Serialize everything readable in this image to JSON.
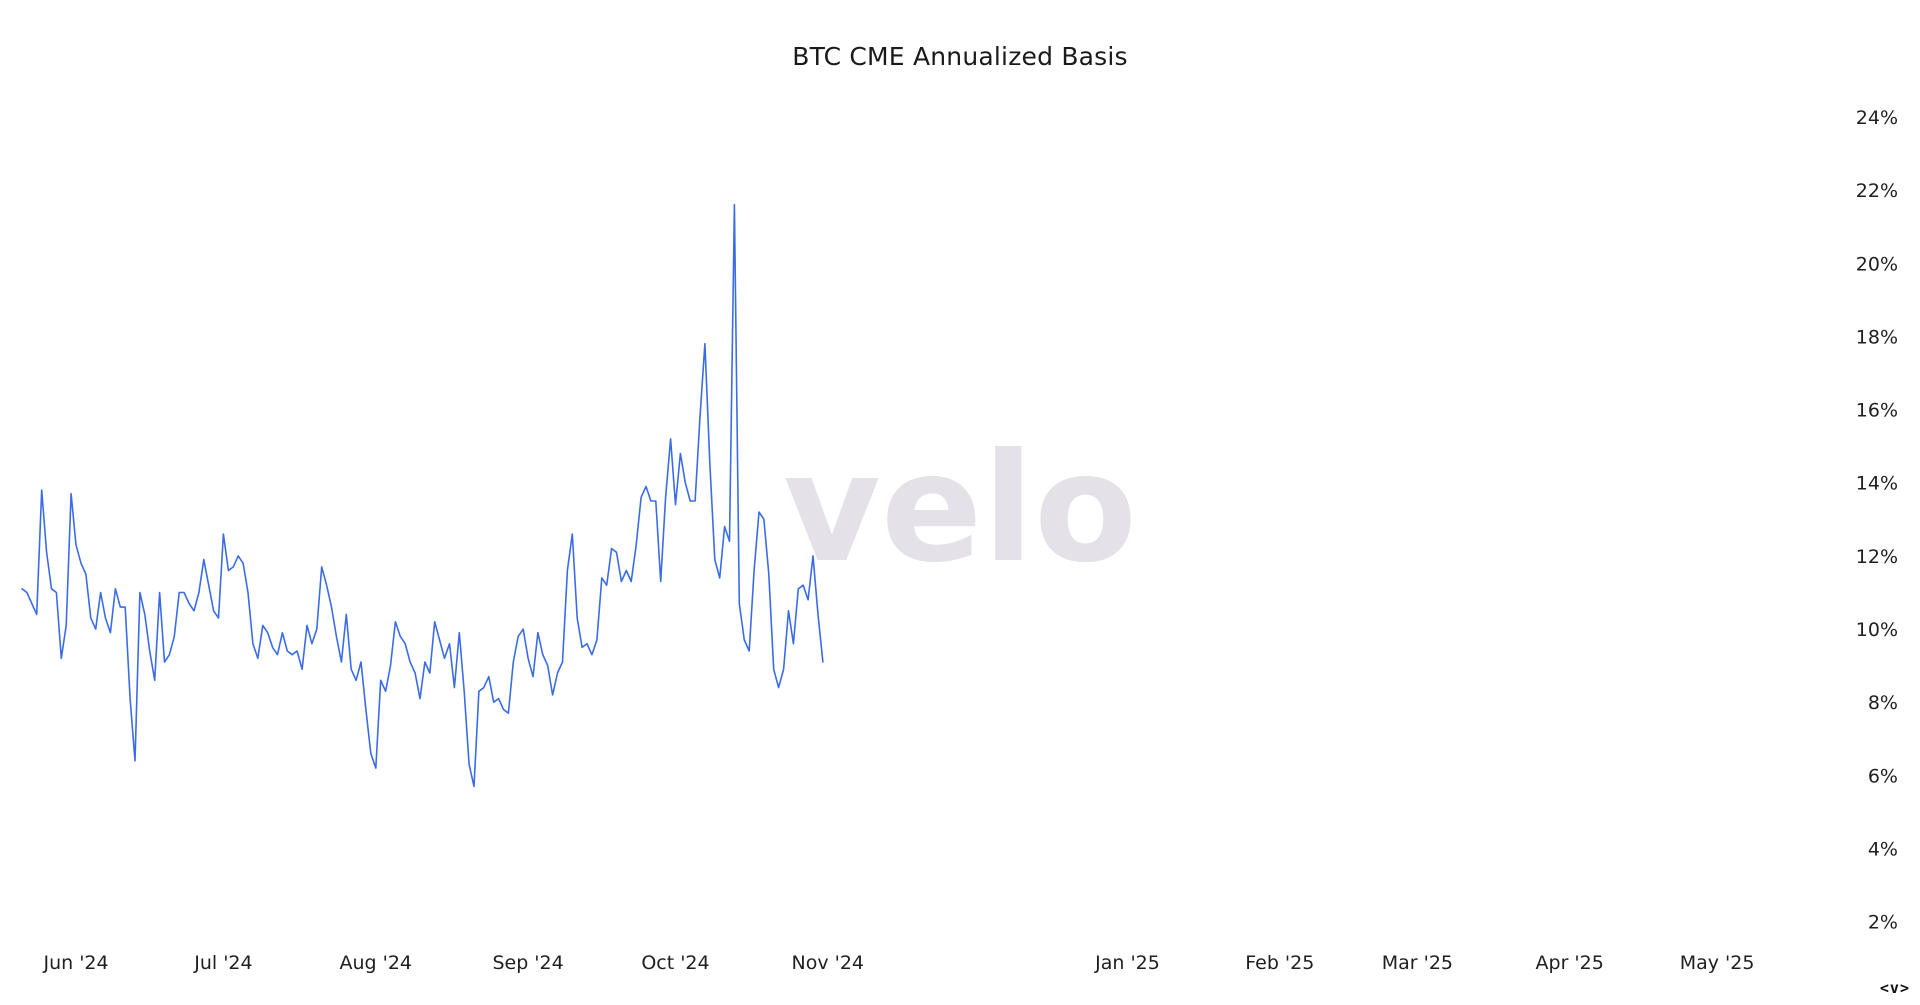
{
  "chart_data": {
    "type": "line",
    "title": "BTC CME Annualized Basis",
    "watermark": "velo",
    "line_color": "#3b6ce8",
    "ylim": [
      1.5,
      24.6
    ],
    "y_ticks": [
      {
        "value": 24,
        "label": "24%"
      },
      {
        "value": 22,
        "label": "22%"
      },
      {
        "value": 20,
        "label": "20%"
      },
      {
        "value": 18,
        "label": "18%"
      },
      {
        "value": 16,
        "label": "16%"
      },
      {
        "value": 14,
        "label": "14%"
      },
      {
        "value": 12,
        "label": "12%"
      },
      {
        "value": 10,
        "label": "10%"
      },
      {
        "value": 8,
        "label": "8%"
      },
      {
        "value": 6,
        "label": "6%"
      },
      {
        "value": 4,
        "label": "4%"
      },
      {
        "value": 2,
        "label": "2%"
      }
    ],
    "x_ticks": [
      {
        "date": "2024-06-01",
        "label": "Jun '24"
      },
      {
        "date": "2024-07-01",
        "label": "Jul '24"
      },
      {
        "date": "2024-08-01",
        "label": "Aug '24"
      },
      {
        "date": "2024-09-01",
        "label": "Sep '24"
      },
      {
        "date": "2024-10-01",
        "label": "Oct '24"
      },
      {
        "date": "2024-11-01",
        "label": "Nov '24"
      },
      {
        "date": "2025-01-01",
        "label": "Jan '25"
      },
      {
        "date": "2025-02-01",
        "label": "Feb '25"
      },
      {
        "date": "2025-03-01",
        "label": "Mar '25"
      },
      {
        "date": "2025-04-01",
        "label": "Apr '25"
      },
      {
        "date": "2025-05-01",
        "label": "May '25"
      }
    ],
    "xlim": [
      "2024-05-21",
      "2025-05-25"
    ],
    "series": [
      {
        "values": [
          [
            "2024-05-21",
            11.1
          ],
          [
            "2024-05-22",
            11.0
          ],
          [
            "2024-05-23",
            10.7
          ],
          [
            "2024-05-24",
            10.4
          ],
          [
            "2024-05-25",
            13.8
          ],
          [
            "2024-05-26",
            12.1
          ],
          [
            "2024-05-27",
            11.1
          ],
          [
            "2024-05-28",
            11.0
          ],
          [
            "2024-05-29",
            9.2
          ],
          [
            "2024-05-30",
            10.1
          ],
          [
            "2024-05-31",
            13.7
          ],
          [
            "2024-06-01",
            12.3
          ],
          [
            "2024-06-02",
            11.8
          ],
          [
            "2024-06-03",
            11.5
          ],
          [
            "2024-06-04",
            10.3
          ],
          [
            "2024-06-05",
            10.0
          ],
          [
            "2024-06-06",
            11.0
          ],
          [
            "2024-06-07",
            10.3
          ],
          [
            "2024-06-08",
            9.9
          ],
          [
            "2024-06-09",
            11.1
          ],
          [
            "2024-06-10",
            10.6
          ],
          [
            "2024-06-11",
            10.6
          ],
          [
            "2024-06-12",
            8.1
          ],
          [
            "2024-06-13",
            6.4
          ],
          [
            "2024-06-14",
            11.0
          ],
          [
            "2024-06-15",
            10.4
          ],
          [
            "2024-06-16",
            9.4
          ],
          [
            "2024-06-17",
            8.6
          ],
          [
            "2024-06-18",
            11.0
          ],
          [
            "2024-06-19",
            9.1
          ],
          [
            "2024-06-20",
            9.3
          ],
          [
            "2024-06-21",
            9.8
          ],
          [
            "2024-06-22",
            11.0
          ],
          [
            "2024-06-23",
            11.0
          ],
          [
            "2024-06-24",
            10.7
          ],
          [
            "2024-06-25",
            10.5
          ],
          [
            "2024-06-26",
            11.0
          ],
          [
            "2024-06-27",
            11.9
          ],
          [
            "2024-06-28",
            11.2
          ],
          [
            "2024-06-29",
            10.5
          ],
          [
            "2024-06-30",
            10.3
          ],
          [
            "2024-07-01",
            12.6
          ],
          [
            "2024-07-02",
            11.6
          ],
          [
            "2024-07-03",
            11.7
          ],
          [
            "2024-07-04",
            12.0
          ],
          [
            "2024-07-05",
            11.8
          ],
          [
            "2024-07-06",
            11.0
          ],
          [
            "2024-07-07",
            9.6
          ],
          [
            "2024-07-08",
            9.2
          ],
          [
            "2024-07-09",
            10.1
          ],
          [
            "2024-07-10",
            9.9
          ],
          [
            "2024-07-11",
            9.5
          ],
          [
            "2024-07-12",
            9.3
          ],
          [
            "2024-07-13",
            9.9
          ],
          [
            "2024-07-14",
            9.4
          ],
          [
            "2024-07-15",
            9.3
          ],
          [
            "2024-07-16",
            9.4
          ],
          [
            "2024-07-17",
            8.9
          ],
          [
            "2024-07-18",
            10.1
          ],
          [
            "2024-07-19",
            9.6
          ],
          [
            "2024-07-20",
            10.0
          ],
          [
            "2024-07-21",
            11.7
          ],
          [
            "2024-07-22",
            11.2
          ],
          [
            "2024-07-23",
            10.6
          ],
          [
            "2024-07-24",
            9.8
          ],
          [
            "2024-07-25",
            9.1
          ],
          [
            "2024-07-26",
            10.4
          ],
          [
            "2024-07-27",
            8.9
          ],
          [
            "2024-07-28",
            8.6
          ],
          [
            "2024-07-29",
            9.1
          ],
          [
            "2024-07-30",
            7.8
          ],
          [
            "2024-07-31",
            6.6
          ],
          [
            "2024-08-01",
            6.2
          ],
          [
            "2024-08-02",
            8.6
          ],
          [
            "2024-08-03",
            8.3
          ],
          [
            "2024-08-04",
            9.0
          ],
          [
            "2024-08-05",
            10.2
          ],
          [
            "2024-08-06",
            9.8
          ],
          [
            "2024-08-07",
            9.6
          ],
          [
            "2024-08-08",
            9.1
          ],
          [
            "2024-08-09",
            8.8
          ],
          [
            "2024-08-10",
            8.1
          ],
          [
            "2024-08-11",
            9.1
          ],
          [
            "2024-08-12",
            8.8
          ],
          [
            "2024-08-13",
            10.2
          ],
          [
            "2024-08-14",
            9.7
          ],
          [
            "2024-08-15",
            9.2
          ],
          [
            "2024-08-16",
            9.6
          ],
          [
            "2024-08-17",
            8.4
          ],
          [
            "2024-08-18",
            9.9
          ],
          [
            "2024-08-19",
            8.3
          ],
          [
            "2024-08-20",
            6.3
          ],
          [
            "2024-08-21",
            5.7
          ],
          [
            "2024-08-22",
            8.3
          ],
          [
            "2024-08-23",
            8.4
          ],
          [
            "2024-08-24",
            8.7
          ],
          [
            "2024-08-25",
            8.0
          ],
          [
            "2024-08-26",
            8.1
          ],
          [
            "2024-08-27",
            7.8
          ],
          [
            "2024-08-28",
            7.7
          ],
          [
            "2024-08-29",
            9.1
          ],
          [
            "2024-08-30",
            9.8
          ],
          [
            "2024-08-31",
            10.0
          ],
          [
            "2024-09-01",
            9.2
          ],
          [
            "2024-09-02",
            8.7
          ],
          [
            "2024-09-03",
            9.9
          ],
          [
            "2024-09-04",
            9.3
          ],
          [
            "2024-09-05",
            9.0
          ],
          [
            "2024-09-06",
            8.2
          ],
          [
            "2024-09-07",
            8.8
          ],
          [
            "2024-09-08",
            9.1
          ],
          [
            "2024-09-09",
            11.6
          ],
          [
            "2024-09-10",
            12.6
          ],
          [
            "2024-09-11",
            10.3
          ],
          [
            "2024-09-12",
            9.5
          ],
          [
            "2024-09-13",
            9.6
          ],
          [
            "2024-09-14",
            9.3
          ],
          [
            "2024-09-15",
            9.7
          ],
          [
            "2024-09-16",
            11.4
          ],
          [
            "2024-09-17",
            11.2
          ],
          [
            "2024-09-18",
            12.2
          ],
          [
            "2024-09-19",
            12.1
          ],
          [
            "2024-09-20",
            11.3
          ],
          [
            "2024-09-21",
            11.6
          ],
          [
            "2024-09-22",
            11.3
          ],
          [
            "2024-09-23",
            12.3
          ],
          [
            "2024-09-24",
            13.6
          ],
          [
            "2024-09-25",
            13.9
          ],
          [
            "2024-09-26",
            13.5
          ],
          [
            "2024-09-27",
            13.5
          ],
          [
            "2024-09-28",
            11.3
          ],
          [
            "2024-09-29",
            13.6
          ],
          [
            "2024-09-30",
            15.2
          ],
          [
            "2024-10-01",
            13.4
          ],
          [
            "2024-10-02",
            14.8
          ],
          [
            "2024-10-03",
            14.0
          ],
          [
            "2024-10-04",
            13.5
          ],
          [
            "2024-10-05",
            13.5
          ],
          [
            "2024-10-06",
            15.8
          ],
          [
            "2024-10-07",
            17.8
          ],
          [
            "2024-10-08",
            14.5
          ],
          [
            "2024-10-09",
            11.9
          ],
          [
            "2024-10-10",
            11.4
          ],
          [
            "2024-10-11",
            12.8
          ],
          [
            "2024-10-12",
            12.4
          ],
          [
            "2024-10-13",
            21.6
          ],
          [
            "2024-10-14",
            10.7
          ],
          [
            "2024-10-15",
            9.7
          ],
          [
            "2024-10-16",
            9.4
          ],
          [
            "2024-10-17",
            11.6
          ],
          [
            "2024-10-18",
            13.2
          ],
          [
            "2024-10-19",
            13.0
          ],
          [
            "2024-10-20",
            11.5
          ],
          [
            "2024-10-21",
            8.9
          ],
          [
            "2024-10-22",
            8.4
          ],
          [
            "2024-10-23",
            8.9
          ],
          [
            "2024-10-24",
            10.5
          ],
          [
            "2024-10-25",
            9.6
          ],
          [
            "2024-10-26",
            11.1
          ],
          [
            "2024-10-27",
            11.2
          ],
          [
            "2024-10-28",
            10.8
          ],
          [
            "2024-10-29",
            12.0
          ],
          [
            "2024-10-30",
            10.4
          ],
          [
            "2024-10-31",
            9.1
          ]
        ]
      }
    ]
  },
  "controls": {
    "nav_label": "<v>"
  }
}
